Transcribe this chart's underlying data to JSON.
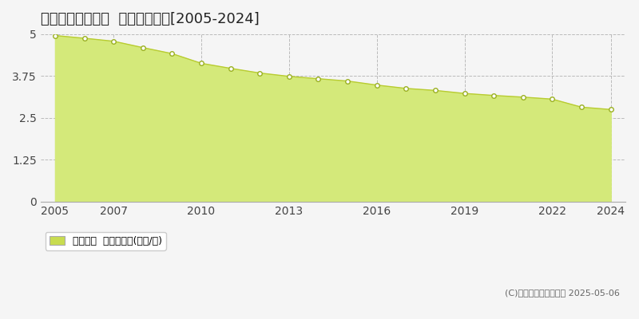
{
  "title": "度会郡大紀町滝原  基準地価推移[2005-2024]",
  "years": [
    2005,
    2006,
    2007,
    2008,
    2009,
    2010,
    2011,
    2012,
    2013,
    2014,
    2015,
    2016,
    2017,
    2018,
    2019,
    2020,
    2021,
    2022,
    2023,
    2024
  ],
  "values": [
    4.96,
    4.88,
    4.79,
    4.6,
    4.42,
    4.13,
    3.98,
    3.84,
    3.74,
    3.67,
    3.6,
    3.48,
    3.38,
    3.32,
    3.23,
    3.17,
    3.12,
    3.06,
    2.82,
    2.75
  ],
  "ylim": [
    0,
    5
  ],
  "yticks": [
    0,
    1.25,
    2.5,
    3.75,
    5
  ],
  "ytick_labels": [
    "0",
    "1.25",
    "2.5",
    "3.75",
    "5"
  ],
  "xtick_years": [
    2005,
    2007,
    2010,
    2013,
    2016,
    2019,
    2022,
    2024
  ],
  "fill_color": "#d4e97a",
  "line_color": "#b8cc30",
  "marker_facecolor": "#ffffff",
  "marker_edgecolor": "#9ab020",
  "grid_color": "#bbbbbb",
  "bg_color": "#f5f5f5",
  "plot_bg_color": "#f5f5f5",
  "title_fontsize": 13,
  "axis_fontsize": 10,
  "legend_label": "基準地価  平均坪単価(万円/坪)",
  "legend_color": "#c8dc50",
  "copyright_text": "(C)土地価格ドットコム 2025-05-06"
}
